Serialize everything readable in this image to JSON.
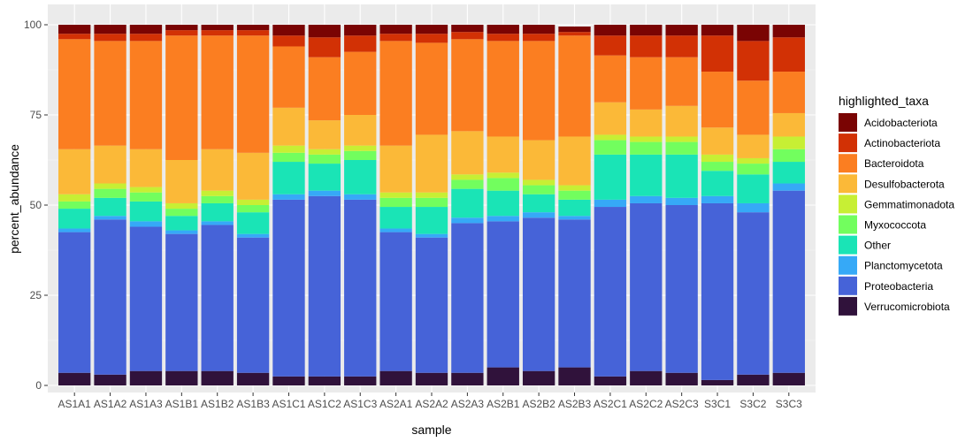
{
  "chart_data": {
    "type": "bar",
    "stacked": true,
    "xlabel": "sample",
    "ylabel": "percent_abundance",
    "ylim": [
      0,
      100
    ],
    "yticks": [
      0,
      25,
      50,
      75,
      100
    ],
    "grid": true,
    "legend_position": "right",
    "legend_title": "highlighted_taxa",
    "categories": [
      "AS1A1",
      "AS1A2",
      "AS1A3",
      "AS1B1",
      "AS1B2",
      "AS1B3",
      "AS1C1",
      "AS1C2",
      "AS1C3",
      "AS2A1",
      "AS2A2",
      "AS2A3",
      "AS2B1",
      "AS2B2",
      "AS2B3",
      "AS2C1",
      "AS2C2",
      "AS2C3",
      "S3C1",
      "S3C2",
      "S3C3"
    ],
    "stack_order_bottom_to_top": [
      "Verrucomicrobiota",
      "Proteobacteria",
      "Planctomycetota",
      "Other",
      "Myxococcota",
      "Gemmatimonadota",
      "Desulfobacterota",
      "Bacteroidota",
      "Actinobacteriota",
      "Acidobacteriota"
    ],
    "series": [
      {
        "name": "Acidobacteriota",
        "color": "#7a0403",
        "values": [
          2.5,
          2.5,
          2.5,
          1.5,
          1.5,
          1.5,
          3.0,
          3.5,
          3.0,
          2.5,
          2.5,
          2.0,
          2.5,
          2.5,
          1.5,
          3.0,
          3.0,
          3.0,
          3.0,
          4.5,
          3.5
        ]
      },
      {
        "name": "Actinobacteriota",
        "color": "#d23105",
        "values": [
          1.5,
          2.0,
          2.0,
          1.5,
          1.5,
          1.5,
          3.0,
          5.5,
          4.5,
          2.0,
          2.5,
          2.0,
          2.0,
          2.0,
          1.0,
          5.5,
          6.0,
          6.0,
          10.0,
          11.0,
          9.5
        ]
      },
      {
        "name": "Bacteroidota",
        "color": "#fb7e21",
        "values": [
          30.5,
          29.0,
          30.0,
          34.5,
          31.5,
          32.5,
          17.0,
          17.5,
          17.5,
          29.0,
          25.5,
          25.5,
          26.5,
          27.5,
          28.0,
          13.0,
          14.5,
          13.5,
          15.5,
          15.0,
          11.5
        ]
      },
      {
        "name": "Desulfobacterota",
        "color": "#fbb938",
        "values": [
          12.5,
          10.5,
          10.5,
          12.0,
          11.5,
          13.0,
          10.5,
          8.0,
          8.5,
          13.0,
          16.0,
          12.0,
          10.0,
          11.0,
          13.5,
          9.0,
          7.5,
          8.5,
          7.5,
          6.5,
          6.5
        ]
      },
      {
        "name": "Gemmatimonadota",
        "color": "#c7ef34",
        "values": [
          2.0,
          1.5,
          1.5,
          1.5,
          1.5,
          1.5,
          2.0,
          1.5,
          1.5,
          1.5,
          1.5,
          1.5,
          1.5,
          1.5,
          1.5,
          1.5,
          1.5,
          1.5,
          2.0,
          1.5,
          3.5
        ]
      },
      {
        "name": "Myxococcota",
        "color": "#72fe5e",
        "values": [
          2.0,
          2.5,
          2.5,
          2.0,
          2.0,
          2.0,
          2.5,
          2.5,
          2.5,
          2.5,
          2.5,
          2.5,
          3.5,
          2.5,
          2.5,
          4.0,
          3.5,
          3.5,
          2.5,
          3.0,
          3.5
        ]
      },
      {
        "name": "Other",
        "color": "#1ae4b6",
        "values": [
          5.5,
          5.0,
          5.5,
          4.0,
          5.0,
          6.0,
          9.0,
          7.5,
          9.5,
          6.0,
          7.5,
          8.0,
          7.0,
          5.0,
          4.5,
          12.5,
          11.5,
          12.0,
          7.0,
          8.0,
          6.0
        ]
      },
      {
        "name": "Planctomycetota",
        "color": "#36a9f7",
        "values": [
          1.0,
          1.0,
          1.5,
          1.0,
          1.0,
          1.0,
          1.5,
          1.5,
          1.5,
          1.0,
          1.0,
          1.5,
          1.5,
          1.5,
          1.0,
          2.0,
          2.0,
          2.0,
          2.0,
          2.5,
          2.0
        ]
      },
      {
        "name": "Proteobacteria",
        "color": "#4663d8",
        "values": [
          39.0,
          43.0,
          40.0,
          38.0,
          40.5,
          37.5,
          49.0,
          50.0,
          49.0,
          38.5,
          37.5,
          41.5,
          40.5,
          42.5,
          41.0,
          47.0,
          46.5,
          46.5,
          49.0,
          45.0,
          50.5
        ]
      },
      {
        "name": "Verrucomicrobiota",
        "color": "#30123b",
        "values": [
          3.5,
          3.0,
          4.0,
          4.0,
          4.0,
          3.5,
          2.5,
          2.5,
          2.5,
          4.0,
          3.5,
          3.5,
          5.0,
          4.0,
          5.0,
          2.5,
          4.0,
          3.5,
          1.5,
          3.0,
          3.5
        ]
      }
    ]
  }
}
